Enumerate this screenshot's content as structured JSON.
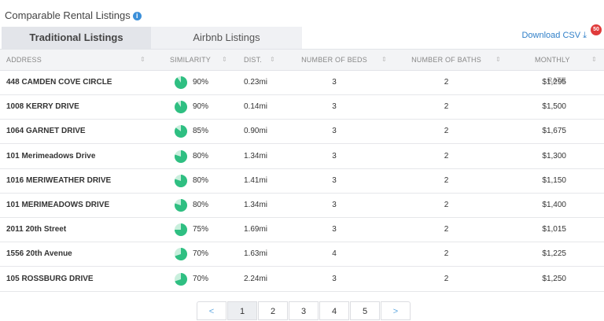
{
  "header": {
    "title": "Comparable Rental Listings"
  },
  "tabs": [
    "Traditional Listings",
    "Airbnb Listings"
  ],
  "download": {
    "label": "Download CSV",
    "badge": "50"
  },
  "table": {
    "columns": [
      "ADDRESS",
      "SIMILARITY",
      "DIST.",
      "NUMBER OF BEDS",
      "NUMBER OF BATHS",
      "MONTHLY RATE"
    ],
    "rows": [
      [
        "448 CAMDEN COVE CIRCLE",
        "90%",
        "0.23mi",
        "3",
        "2",
        "$1,295"
      ],
      [
        "1008 KERRY DRIVE",
        "90%",
        "0.14mi",
        "3",
        "2",
        "$1,500"
      ],
      [
        "1064 GARNET DRIVE",
        "85%",
        "0.90mi",
        "3",
        "2",
        "$1,675"
      ],
      [
        "101 Merimeadows Drive",
        "80%",
        "1.34mi",
        "3",
        "2",
        "$1,300"
      ],
      [
        "1016 MERIWEATHER DRIVE",
        "80%",
        "1.41mi",
        "3",
        "2",
        "$1,150"
      ],
      [
        "101 MERIMEADOWS DRIVE",
        "80%",
        "1.34mi",
        "3",
        "2",
        "$1,400"
      ],
      [
        "2011 20th Street",
        "75%",
        "1.69mi",
        "3",
        "2",
        "$1,015"
      ],
      [
        "1556 20th Avenue",
        "70%",
        "1.63mi",
        "4",
        "2",
        "$1,225"
      ],
      [
        "105 ROSSBURG DRIVE",
        "70%",
        "2.24mi",
        "3",
        "2",
        "$1,250"
      ]
    ]
  },
  "pagination": [
    "<",
    "1",
    "2",
    "3",
    "4",
    "5",
    ">"
  ]
}
